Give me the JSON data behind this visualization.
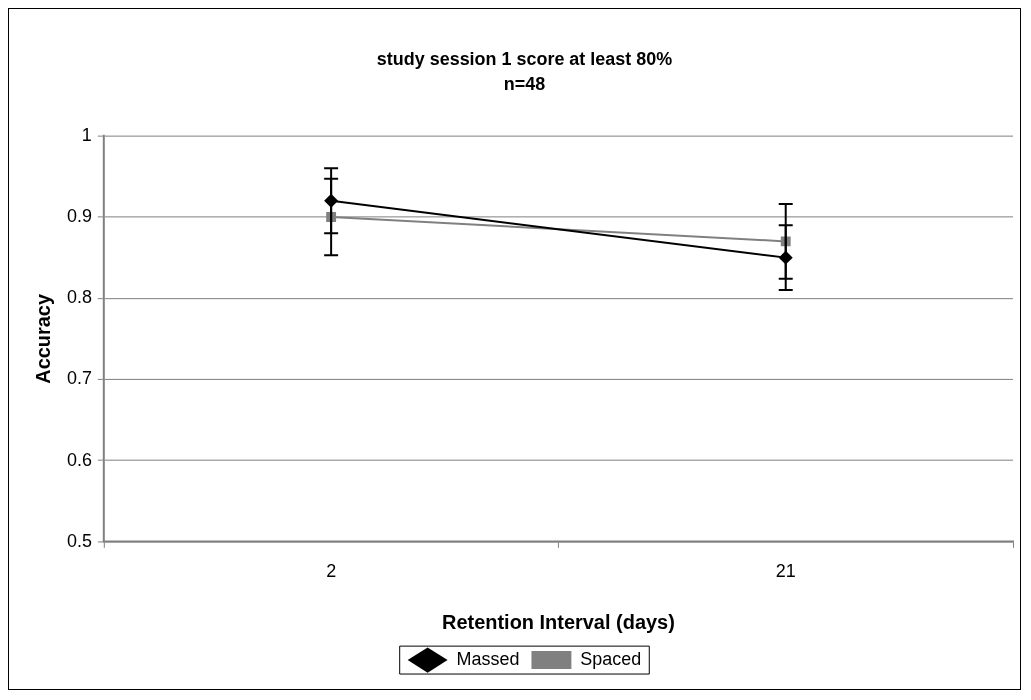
{
  "chart_data": {
    "type": "line",
    "title": "study session 1 score at least 80%",
    "subtitle": "n=48",
    "xlabel": "Retention Interval (days)",
    "ylabel": "Accuracy",
    "categories": [
      "2",
      "21"
    ],
    "series": [
      {
        "name": "Massed",
        "color": "#000000",
        "values": [
          0.92,
          0.85
        ],
        "errors": [
          0.04,
          0.04
        ],
        "marker": "diamond"
      },
      {
        "name": "Spaced",
        "color": "#808080",
        "values": [
          0.9,
          0.87
        ],
        "errors": [
          0.047,
          0.046
        ],
        "marker": "square"
      }
    ],
    "ylim": [
      0.5,
      1
    ],
    "yticks": [
      0.5,
      0.6,
      0.7,
      0.8,
      0.9,
      1
    ],
    "grid": "y",
    "legend": "bottom",
    "line_style": "solid"
  }
}
